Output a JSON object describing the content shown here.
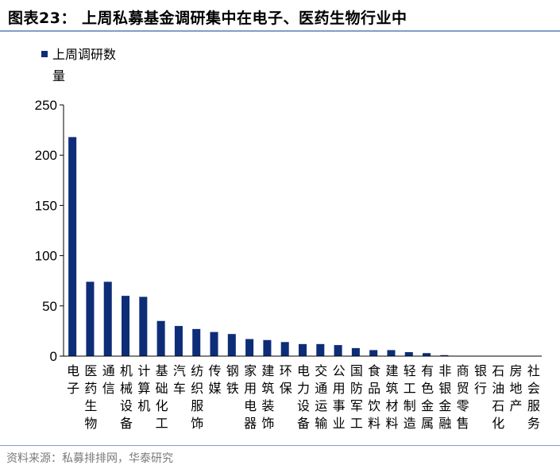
{
  "title": "图表23：  上周私募基金调研集中在电子、医药生物行业中",
  "source": "资料来源：私募排排网，华泰研究",
  "chart_data": {
    "type": "bar",
    "legend": [
      "上周调研数",
      "量"
    ],
    "series_name": "上周调研数量",
    "color": "#0e2d78",
    "ylim": [
      0,
      250
    ],
    "yticks": [
      0,
      50,
      100,
      150,
      200,
      250
    ],
    "categories": [
      [
        "电",
        "子"
      ],
      [
        "医",
        "药",
        "生",
        "物"
      ],
      [
        "通",
        "信"
      ],
      [
        "机",
        "械",
        "设",
        "备"
      ],
      [
        "计",
        "算",
        "机"
      ],
      [
        "基",
        "础",
        "化",
        "工"
      ],
      [
        "汽",
        "车"
      ],
      [
        "纺",
        "织",
        "服",
        "饰"
      ],
      [
        "传",
        "媒"
      ],
      [
        "钢",
        "铁"
      ],
      [
        "家",
        "用",
        "电",
        "器"
      ],
      [
        "建",
        "筑",
        "装",
        "饰"
      ],
      [
        "环",
        "保"
      ],
      [
        "电",
        "力",
        "设",
        "备"
      ],
      [
        "交",
        "通",
        "运",
        "输"
      ],
      [
        "公",
        "用",
        "事",
        "业"
      ],
      [
        "国",
        "防",
        "军",
        "工"
      ],
      [
        "食",
        "品",
        "饮",
        "料"
      ],
      [
        "建",
        "筑",
        "材",
        "料"
      ],
      [
        "轻",
        "工",
        "制",
        "造"
      ],
      [
        "有",
        "色",
        "金",
        "属"
      ],
      [
        "非",
        "银",
        "金",
        "融"
      ],
      [
        "商",
        "贸",
        "零",
        "售"
      ],
      [
        "银",
        "行"
      ],
      [
        "石",
        "油",
        "石",
        "化"
      ],
      [
        "房",
        "地",
        "产"
      ],
      [
        "社",
        "会",
        "服",
        "务"
      ]
    ],
    "values": [
      218,
      74,
      74,
      60,
      59,
      35,
      30,
      27,
      24,
      22,
      17,
      16,
      14,
      12,
      12,
      11,
      8,
      6,
      6,
      4,
      3,
      1,
      0,
      0,
      0,
      0,
      0
    ]
  }
}
